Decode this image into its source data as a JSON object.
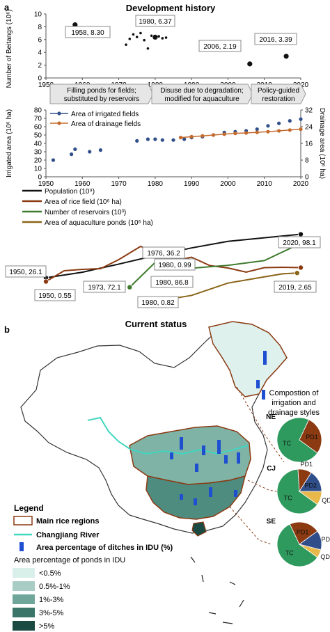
{
  "panel_a": {
    "label": "a",
    "title": "Development history",
    "beitang_callouts": [
      "1958, 8.30",
      "1980, 6.37",
      "2006, 2.19",
      "2016, 3.39"
    ],
    "eras": [
      "Filling ponds for fields;",
      "substituted by reservoirs",
      "Disuse due to degradation;",
      "modified for aquaculture",
      "Policy-guided",
      "restoration"
    ],
    "legend_top": [
      "Area of irrigated fields",
      "Area of drainage fields"
    ],
    "legend_bottom": [
      "Population (10⁹)",
      "Area of rice field (10⁶ ha)",
      "Number of reservoirs (10³)",
      "Area of aquaculture ponds (10⁶ ha)"
    ],
    "trend_callouts": [
      "1950, 26.1",
      "1950, 0.55",
      "1976, 36.2",
      "1980, 0.99",
      "1973, 72.1",
      "1980, 86.8",
      "1980, 0.82",
      "2020, 98.1",
      "2019, 2.65"
    ]
  },
  "panel_b": {
    "label": "b",
    "title": "Current status",
    "composition_title": [
      "Compostion of",
      "irrigation and",
      "drainage styles"
    ],
    "legend_title": "Legend",
    "legend_items": [
      "Main rice regions",
      "Changjiang  River",
      "Area percentage of ditches in IDU (%)"
    ],
    "ponds_title": "Area percentage of ponds in IDU",
    "pond_classes": [
      "<0.5%",
      "0.5%-1%",
      "1%-3%",
      "3%-5%",
      ">5%"
    ],
    "pond_colors": [
      "#d9efea",
      "#a9cdc5",
      "#6fa699",
      "#3b756a",
      "#1a4a42"
    ]
  },
  "chart_data": [
    {
      "type": "scatter",
      "title": "Development history",
      "xlabel": "",
      "ylabel": "Number of Beitangs (10⁶)",
      "xlim": [
        1950,
        2020
      ],
      "ylim": [
        0,
        10
      ],
      "xticks": [
        1950,
        1960,
        1970,
        1980,
        1990,
        2000,
        2010,
        2020
      ],
      "yticks": [
        0,
        2,
        4,
        6,
        8,
        10
      ],
      "series": [
        {
          "x": [
            1958,
            1972,
            1973,
            1974,
            1975,
            1976,
            1977,
            1978,
            1979,
            1980,
            1981,
            1982,
            1983,
            2006,
            2016
          ],
          "y": [
            8.3,
            5.2,
            6.1,
            6.8,
            6.4,
            7.0,
            5.9,
            4.6,
            6.6,
            6.37,
            6.5,
            6.2,
            6.3,
            2.19,
            3.39
          ]
        }
      ]
    },
    {
      "type": "line",
      "xlim": [
        1950,
        2020
      ],
      "ylim": [
        0,
        80
      ],
      "y2lim": [
        0,
        32
      ],
      "ylabel": "Irrigated area (10⁶ ha)",
      "y2label": "Drainage area (10⁶ ha)",
      "xticks": [
        1950,
        1960,
        1970,
        1980,
        1990,
        2000,
        2010,
        2020
      ],
      "yticks": [
        0,
        10,
        20,
        30,
        40,
        50,
        60,
        70,
        80
      ],
      "y2ticks": [
        0,
        8,
        16,
        24,
        32
      ],
      "series": [
        {
          "name": "Area of irrigated fields",
          "color": "#2f4e8a",
          "x": [
            1952,
            1957,
            1958,
            1962,
            1965,
            1975,
            1978,
            1980,
            1982,
            1985,
            1988,
            1990,
            1993,
            1996,
            1999,
            2002,
            2005,
            2008,
            2011,
            2014,
            2017,
            2020
          ],
          "y": [
            20,
            27,
            33,
            30,
            32,
            43,
            45,
            45,
            44,
            44,
            45,
            47,
            48,
            50,
            53,
            54,
            55,
            57,
            61,
            64,
            67,
            69
          ]
        },
        {
          "name": "Area of drainage fields",
          "color": "#c46a2c",
          "x": [
            1987,
            1990,
            1993,
            1996,
            1999,
            2002,
            2005,
            2008,
            2011,
            2014,
            2017,
            2020
          ],
          "y": [
            18.8,
            19.2,
            19.6,
            20.0,
            20.4,
            20.8,
            21.0,
            21.3,
            21.6,
            22.0,
            22.4,
            22.8
          ]
        }
      ]
    },
    {
      "type": "line",
      "xlim": [
        1950,
        2020
      ],
      "series": [
        {
          "name": "Population (10⁹)",
          "color": "#111111",
          "x": [
            1950,
            1960,
            1970,
            1980,
            1990,
            2000,
            2010,
            2020
          ],
          "y": [
            0.55,
            0.66,
            0.82,
            0.99,
            1.14,
            1.27,
            1.34,
            1.41
          ]
        },
        {
          "name": "Area of rice field (10⁶ ha)",
          "color": "#8b3a12",
          "x": [
            1950,
            1955,
            1960,
            1965,
            1970,
            1976,
            1980,
            1985,
            1990,
            1995,
            2000,
            2005,
            2010,
            2015,
            2020
          ],
          "y": [
            26.1,
            29.2,
            29.6,
            29.8,
            32.4,
            36.2,
            34.5,
            32.0,
            33.1,
            30.7,
            30.0,
            28.8,
            30.1,
            30.2,
            30.1
          ]
        },
        {
          "name": "Number of reservoirs (10³)",
          "color": "#3e7a2d",
          "x": [
            1973,
            1980,
            1990,
            2000,
            2010,
            2020
          ],
          "y": [
            72.1,
            86.8,
            83.4,
            85.1,
            87.9,
            98.1
          ]
        },
        {
          "name": "Area of aquaculture ponds (10⁶ ha)",
          "color": "#8a6418",
          "x": [
            1980,
            1990,
            2000,
            2005,
            2010,
            2015,
            2019
          ],
          "y": [
            0.82,
            1.2,
            2.0,
            2.2,
            2.4,
            2.6,
            2.65
          ]
        }
      ]
    },
    {
      "type": "pie",
      "title": "NE",
      "labels": [
        "TC",
        "PD1"
      ],
      "values": [
        72,
        28
      ],
      "colors": [
        "#2e9a5e",
        "#8b3a12"
      ]
    },
    {
      "type": "pie",
      "title": "CJ",
      "labels": [
        "TC",
        "PD1",
        "PD2",
        "QD"
      ],
      "values": [
        64,
        10,
        16,
        10
      ],
      "colors": [
        "#2e9a5e",
        "#8b3a12",
        "#2f4e8a",
        "#e8b84a"
      ]
    },
    {
      "type": "pie",
      "title": "SE",
      "labels": [
        "TC",
        "PD1",
        "PD2",
        "QD"
      ],
      "values": [
        58,
        22,
        14,
        6
      ],
      "colors": [
        "#2e9a5e",
        "#8b3a12",
        "#2f4e8a",
        "#e8b84a"
      ]
    }
  ]
}
